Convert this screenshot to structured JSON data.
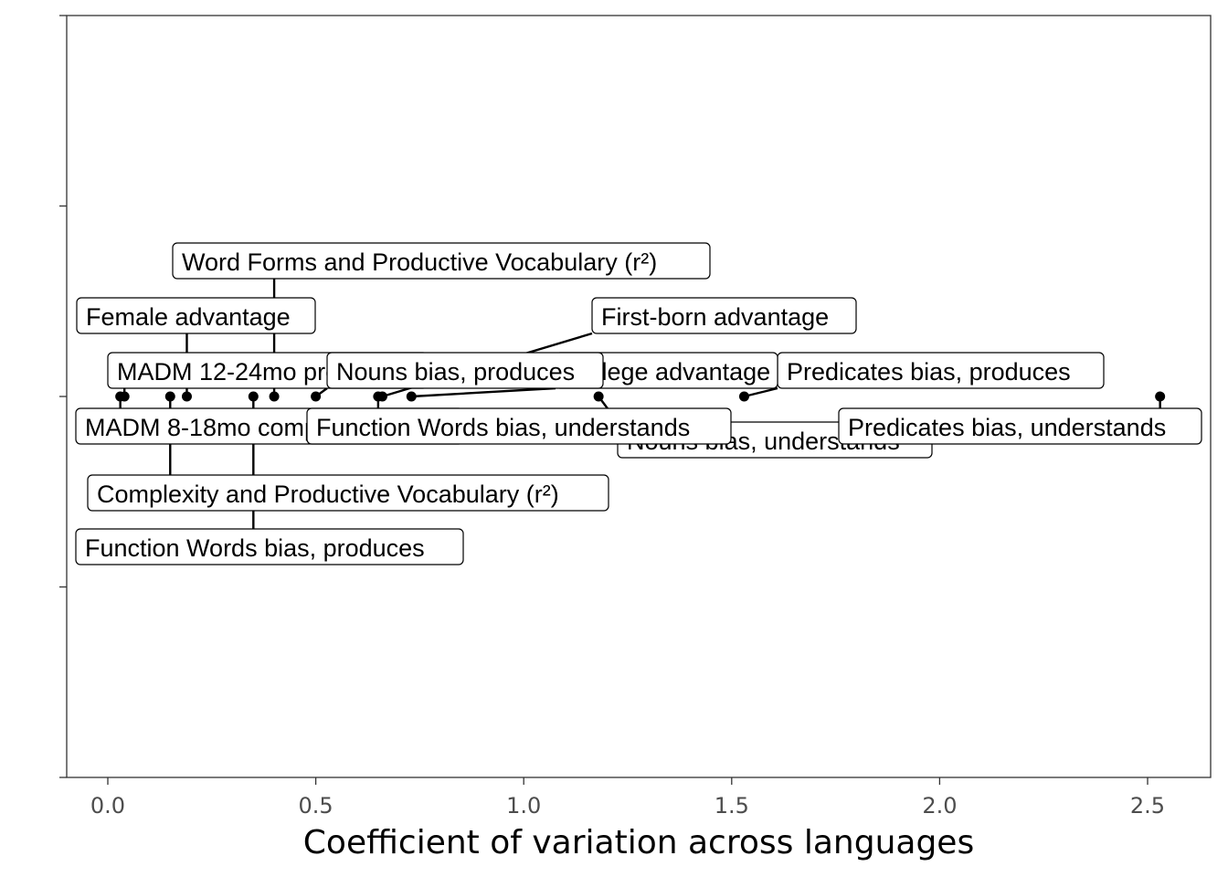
{
  "chart_data": {
    "type": "scatter",
    "title": "",
    "xlabel": "Coefficient of variation across languages",
    "ylabel": "",
    "xlim": [
      -0.1,
      2.65
    ],
    "ylim": [
      -1,
      1
    ],
    "x_ticks": [
      0.0,
      0.5,
      1.0,
      1.5,
      2.0,
      2.5
    ],
    "x_tick_labels": [
      "0.0",
      "0.5",
      "1.0",
      "1.5",
      "2.0",
      "2.5"
    ],
    "y_ticks": [
      -1,
      -0.5,
      0,
      0.5,
      1
    ],
    "grid": false,
    "legend": "none",
    "points": [
      {
        "label": "MADM 8-18mo comprehension",
        "x": 0.03,
        "y": 0
      },
      {
        "label": "MADM 12-24mo production",
        "x": 0.04,
        "y": 0
      },
      {
        "label": "Complexity and Productive Vocabulary (r²)",
        "x": 0.15,
        "y": 0
      },
      {
        "label": "Female advantage",
        "x": 0.19,
        "y": 0
      },
      {
        "label": "Function Words bias, produces",
        "x": 0.35,
        "y": 0
      },
      {
        "label": "Word Forms and Productive Vocabulary (r²)",
        "x": 0.4,
        "y": 0
      },
      {
        "label": "Nouns bias, produces",
        "x": 0.5,
        "y": 0
      },
      {
        "label": "Function Words bias, understands",
        "x": 0.65,
        "y": 0
      },
      {
        "label": "First-born advantage",
        "x": 0.66,
        "y": 0
      },
      {
        "label": "College advantage",
        "x": 0.73,
        "y": 0
      },
      {
        "label": "Nouns bias, understands",
        "x": 1.18,
        "y": 0
      },
      {
        "label": "Predicates bias, produces",
        "x": 1.53,
        "y": 0
      },
      {
        "label": "Predicates bias, understands",
        "x": 2.53,
        "y": 0
      }
    ]
  }
}
